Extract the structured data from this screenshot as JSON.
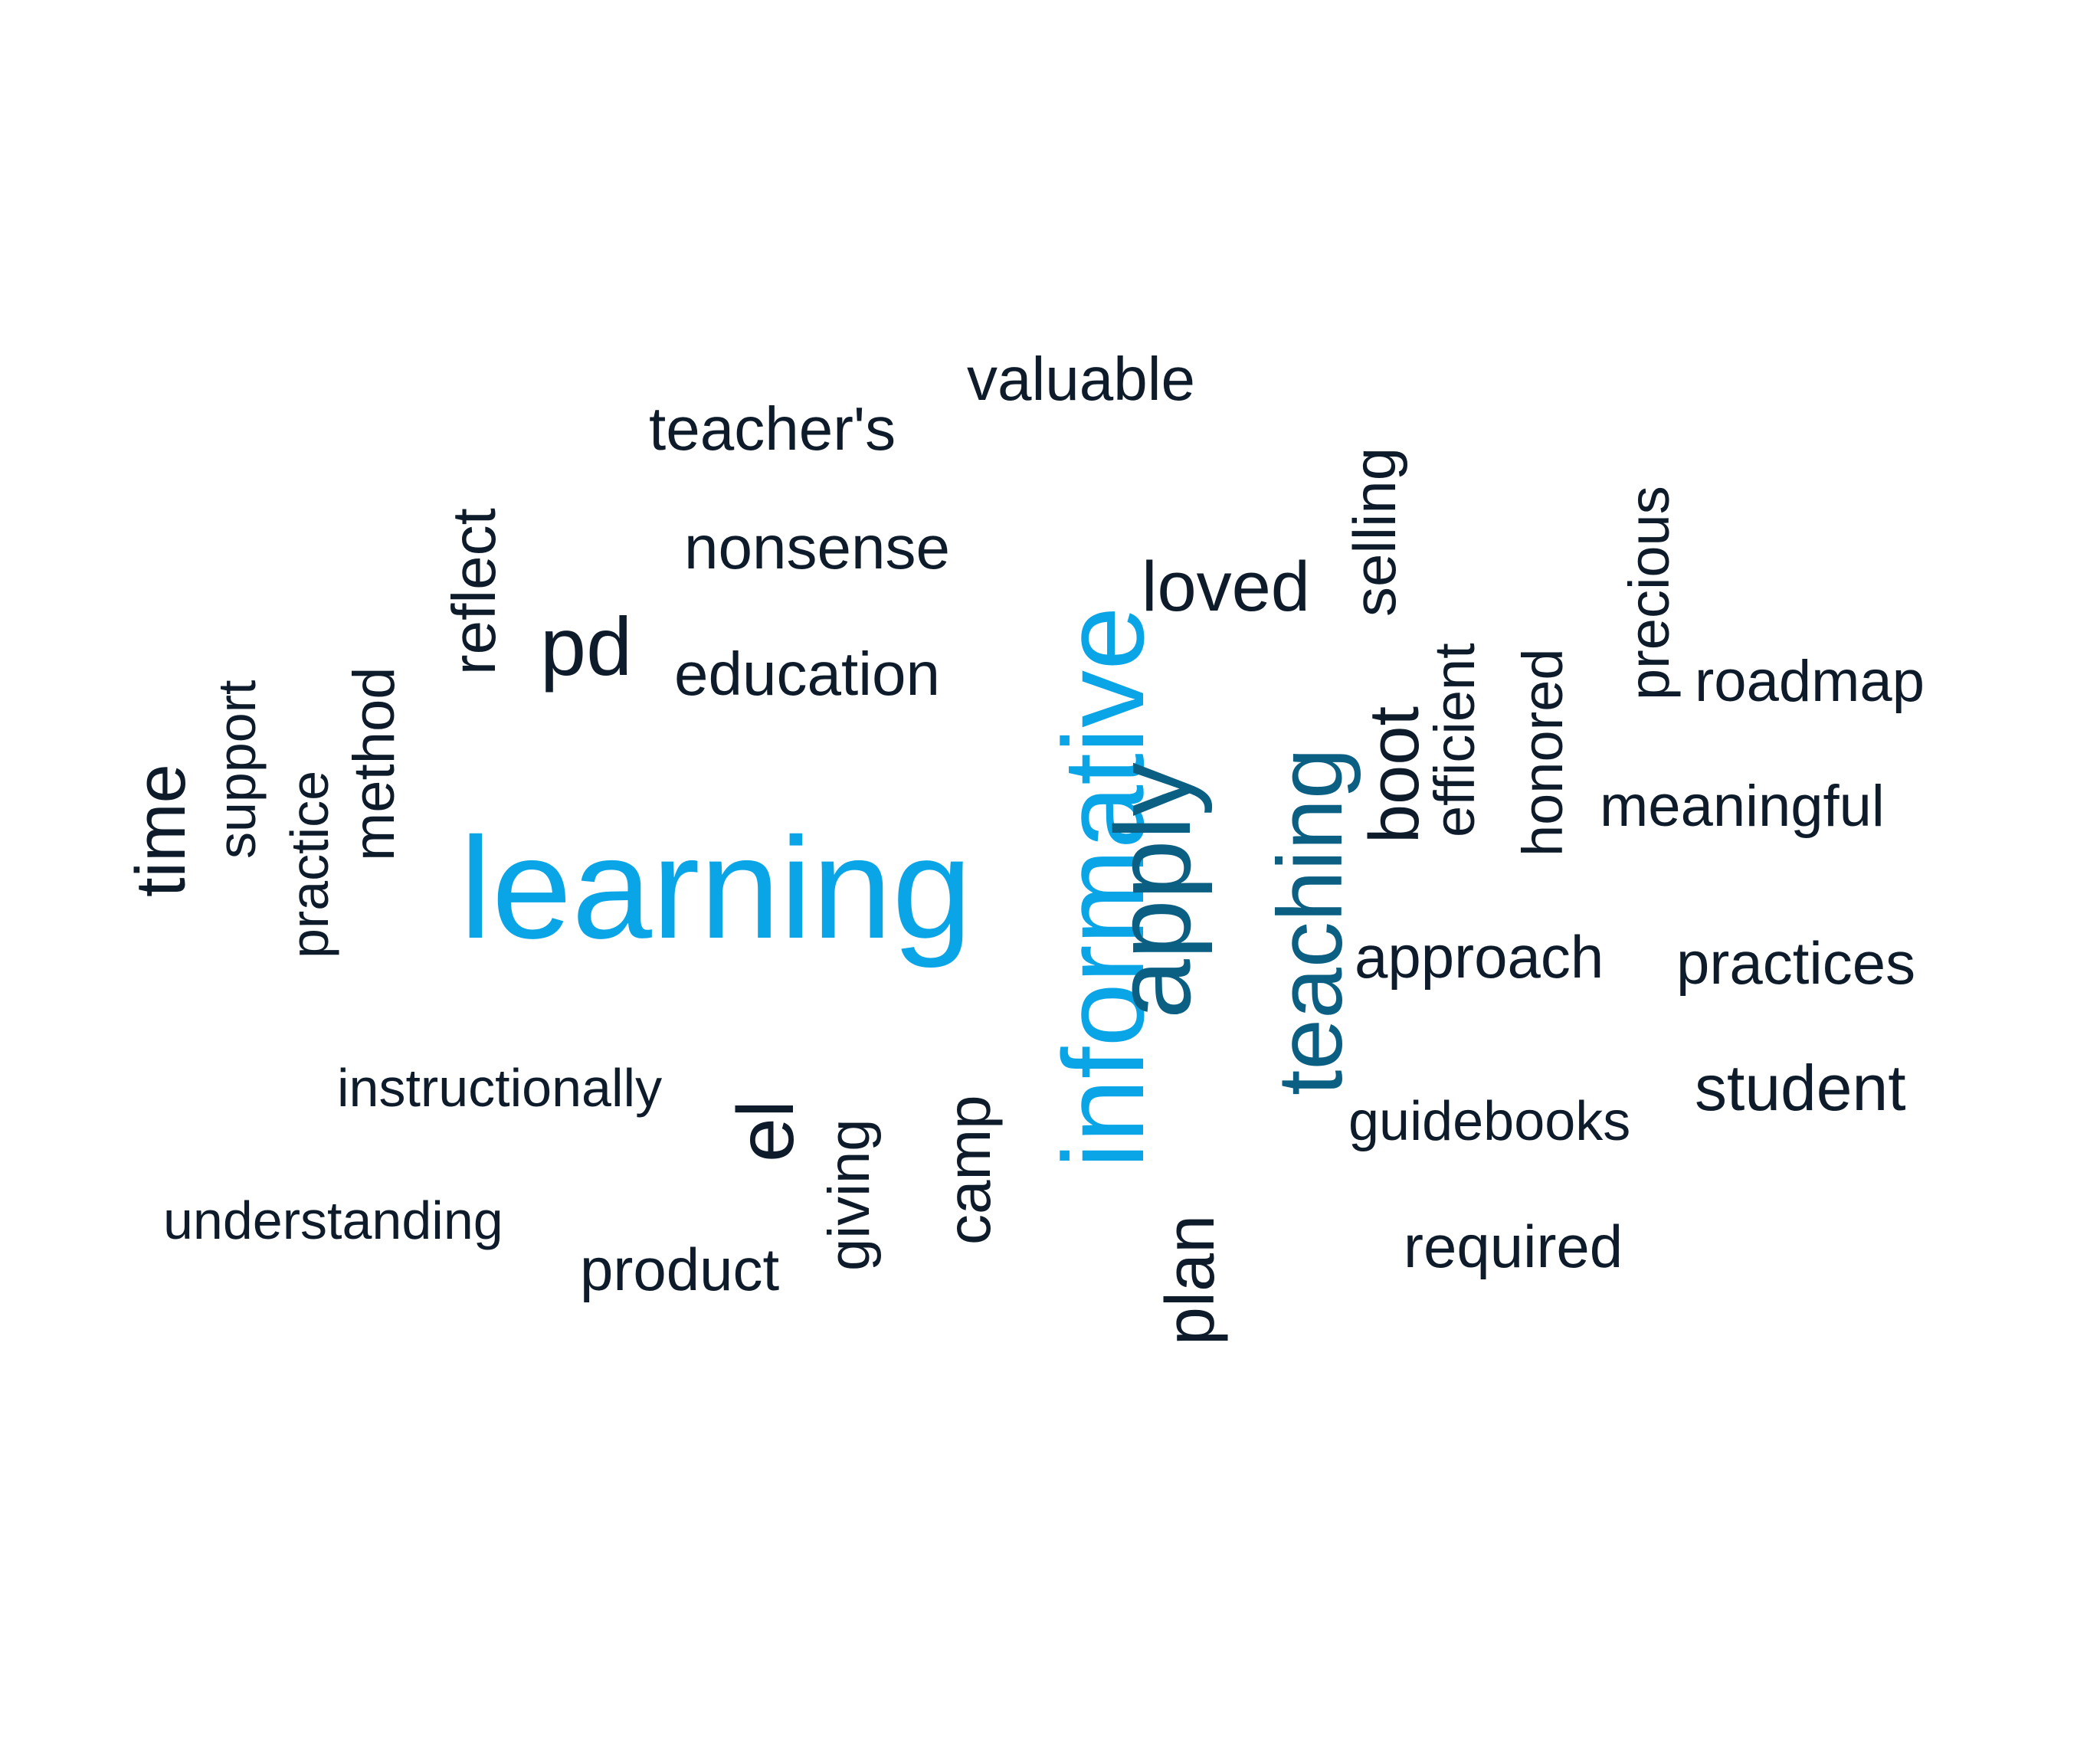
{
  "words": {
    "valuable": "valuable",
    "teachers": "teacher's",
    "selling": "selling",
    "precious": "precious",
    "reflect": "reflect",
    "nonsense": "nonsense",
    "loved": "loved",
    "pd": "pd",
    "education": "education",
    "efficient": "efficient",
    "honored": "honored",
    "roadmap": "roadmap",
    "time": "time",
    "support": "support",
    "method": "method",
    "practice": "practice",
    "boot": "boot",
    "meaningful": "meaningful",
    "learning": "learning",
    "informative": "informative",
    "apply": "apply",
    "teaching": "teaching",
    "approach": "approach",
    "practices": "practices",
    "instructionally": "instructionally",
    "el": "el",
    "student": "student",
    "guidebooks": "guidebooks",
    "giving": "giving",
    "camp": "camp",
    "understanding": "understanding",
    "product": "product",
    "required": "required",
    "plan": "plan"
  },
  "colors": {
    "dark": "#0d1b2a",
    "mid": "#0b5f82",
    "light": "#0aa5e6"
  }
}
